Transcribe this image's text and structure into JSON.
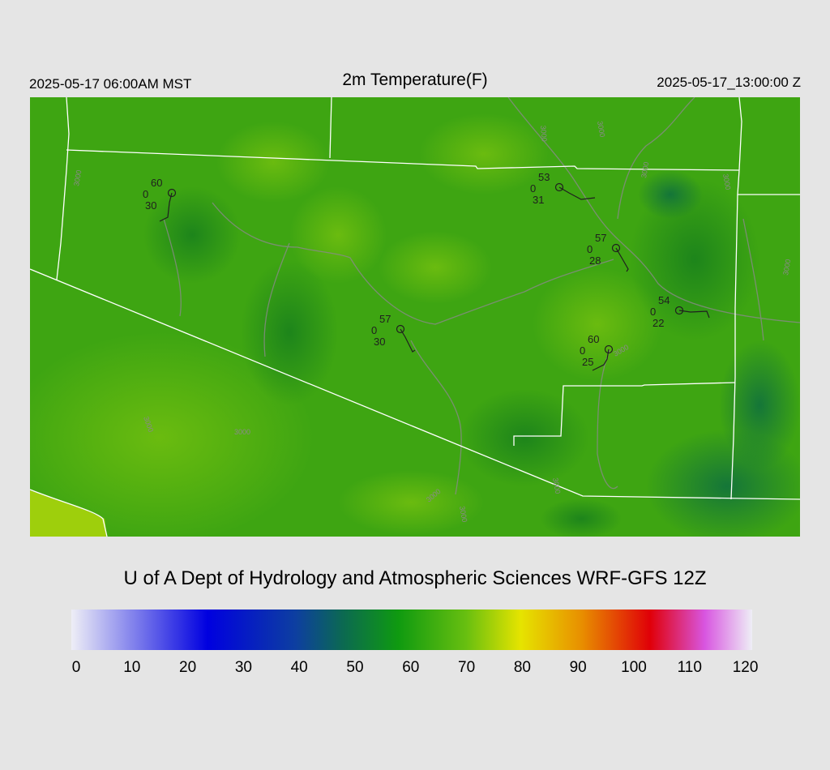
{
  "header": {
    "local_time": "2025-05-17 06:00AM MST",
    "title": "2m Temperature(F)",
    "utc_time": "2025-05-17_13:00:00 Z"
  },
  "credit": "U of A Dept of Hydrology and Atmospheric Sciences WRF-GFS 12Z",
  "colorbar": {
    "ticks": [
      "0",
      "10",
      "20",
      "30",
      "40",
      "50",
      "60",
      "70",
      "80",
      "90",
      "100",
      "110",
      "120"
    ]
  },
  "stations": [
    {
      "temp": "60",
      "calm": "0",
      "dewpoint": "30"
    },
    {
      "temp": "53",
      "calm": "0",
      "dewpoint": "31"
    },
    {
      "temp": "57",
      "calm": "0",
      "dewpoint": "28"
    },
    {
      "temp": "57",
      "calm": "0",
      "dewpoint": "30"
    },
    {
      "temp": "54",
      "calm": "0",
      "dewpoint": "22"
    },
    {
      "temp": "60",
      "calm": "0",
      "dewpoint": "25"
    }
  ],
  "contour_labels": [
    "3000",
    "3000",
    "3000",
    "3000",
    "3000",
    "3000",
    "3000",
    "3000",
    "3000",
    "3000",
    "3000"
  ]
}
